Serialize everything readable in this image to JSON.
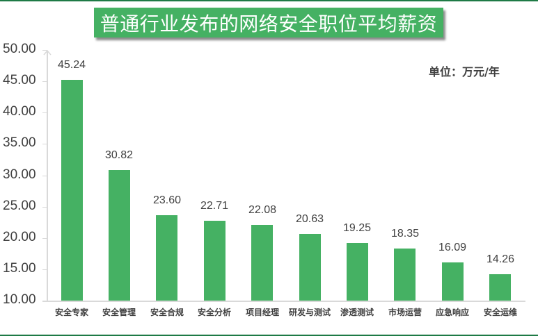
{
  "chart_data": {
    "type": "bar",
    "title": "普通行业发布的网络安全职位平均薪资",
    "unit_note": "单位：万元/年",
    "categories": [
      "安全专家",
      "安全管理",
      "安全合规",
      "安全分析",
      "项目经理",
      "研发与测试",
      "渗透测试",
      "市场运营",
      "应急响应",
      "安全运维"
    ],
    "values": [
      45.24,
      30.82,
      23.6,
      22.71,
      22.08,
      20.63,
      19.25,
      18.35,
      16.09,
      14.26
    ],
    "value_labels": [
      "45.24",
      "30.82",
      "23.60",
      "22.71",
      "22.08",
      "20.63",
      "19.25",
      "18.35",
      "16.09",
      "14.26"
    ],
    "xlabel": "",
    "ylabel": "",
    "ylim": [
      10,
      50
    ],
    "yticks": [
      "50.00",
      "45.00",
      "40.00",
      "35.00",
      "30.00",
      "25.00",
      "20.00",
      "15.00",
      "10.00"
    ],
    "grid": false,
    "legend": null,
    "bar_color": "#45b163"
  },
  "colors": {
    "accent": "#45b163",
    "frame_line": "#1e7a45",
    "axis": "#d9d9d9",
    "text": "#404040"
  }
}
